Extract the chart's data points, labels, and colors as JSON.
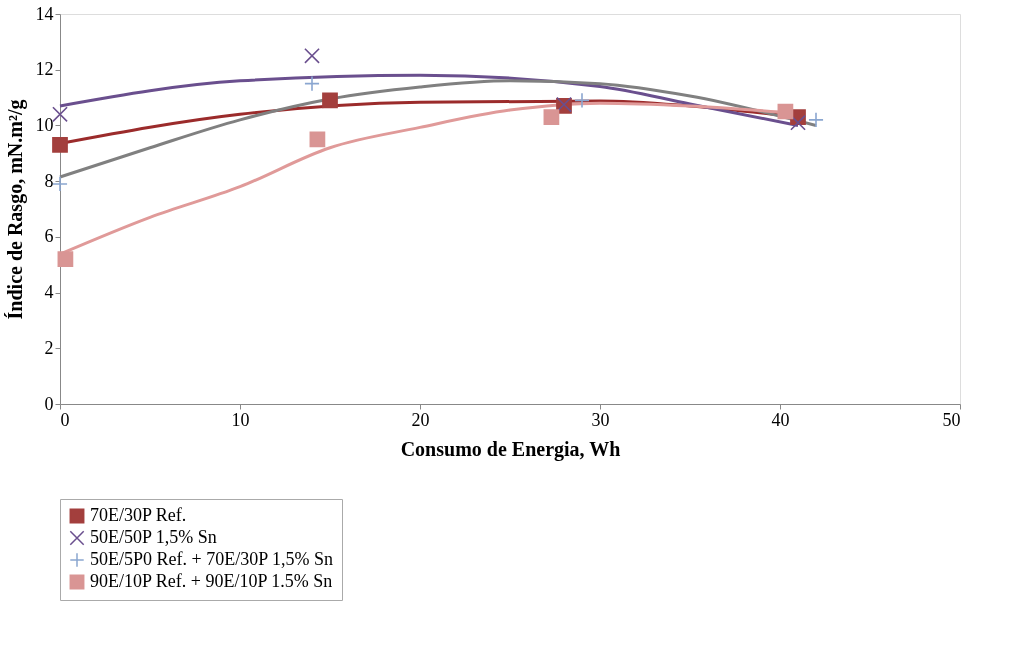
{
  "chart_data": {
    "type": "scatter",
    "xlabel": "Consumo de Energia, Wh",
    "ylabel": "Índice de Rasgo, mN.m²/g",
    "xlim": [
      0,
      50
    ],
    "xticks": [
      0,
      10,
      20,
      30,
      40,
      50
    ],
    "ylim": [
      0,
      14
    ],
    "yticks": [
      0,
      2,
      4,
      6,
      8,
      10,
      12,
      14
    ],
    "grid": false,
    "legend": "bottom",
    "series": [
      {
        "name": "70E/30P Ref.",
        "color": "#a33f3d",
        "marker": "square",
        "x": [
          0,
          15,
          28,
          41
        ],
        "values": [
          9.3,
          10.9,
          10.7,
          10.3
        ]
      },
      {
        "name": "50E/50P 1,5% Sn",
        "color": "#6a4f8e",
        "marker": "x",
        "x": [
          0,
          14,
          28,
          41
        ],
        "values": [
          10.4,
          12.5,
          10.75,
          10.1
        ]
      },
      {
        "name": "50E/5P0 Ref. + 70E/30P 1,5% Sn",
        "color": "#8aa6d0",
        "marker": "cross",
        "x": [
          0,
          14,
          29,
          42
        ],
        "values": [
          7.9,
          11.5,
          10.9,
          10.2
        ]
      },
      {
        "name": "90E/10P Ref. + 90E/10P 1.5% Sn",
        "color": "#d99594",
        "marker": "square",
        "x": [
          0.3,
          14.3,
          27.3,
          40.3
        ],
        "values": [
          5.2,
          9.5,
          10.3,
          10.5
        ]
      },
      {
        "type": "line",
        "color": "#9b2b2b",
        "x": [
          0,
          10,
          20,
          30,
          35,
          41
        ],
        "values": [
          9.35,
          10.4,
          10.83,
          10.88,
          10.7,
          10.3
        ]
      },
      {
        "type": "line",
        "color": "#6a4f8e",
        "x": [
          0,
          10,
          20,
          30,
          35,
          41
        ],
        "values": [
          10.7,
          11.6,
          11.8,
          11.4,
          10.77,
          10.0
        ]
      },
      {
        "type": "line",
        "color": "#808080",
        "x": [
          0,
          5,
          10,
          15,
          20,
          25,
          30,
          35,
          42
        ],
        "values": [
          8.15,
          9.2,
          10.2,
          10.95,
          11.38,
          11.6,
          11.5,
          11.06,
          10.0
        ]
      },
      {
        "type": "line",
        "color": "#e09a99",
        "x": [
          0,
          5,
          10,
          15,
          20,
          25,
          30,
          35,
          40
        ],
        "values": [
          5.38,
          6.7,
          7.8,
          9.2,
          9.93,
          10.55,
          10.8,
          10.7,
          10.48
        ]
      }
    ]
  }
}
